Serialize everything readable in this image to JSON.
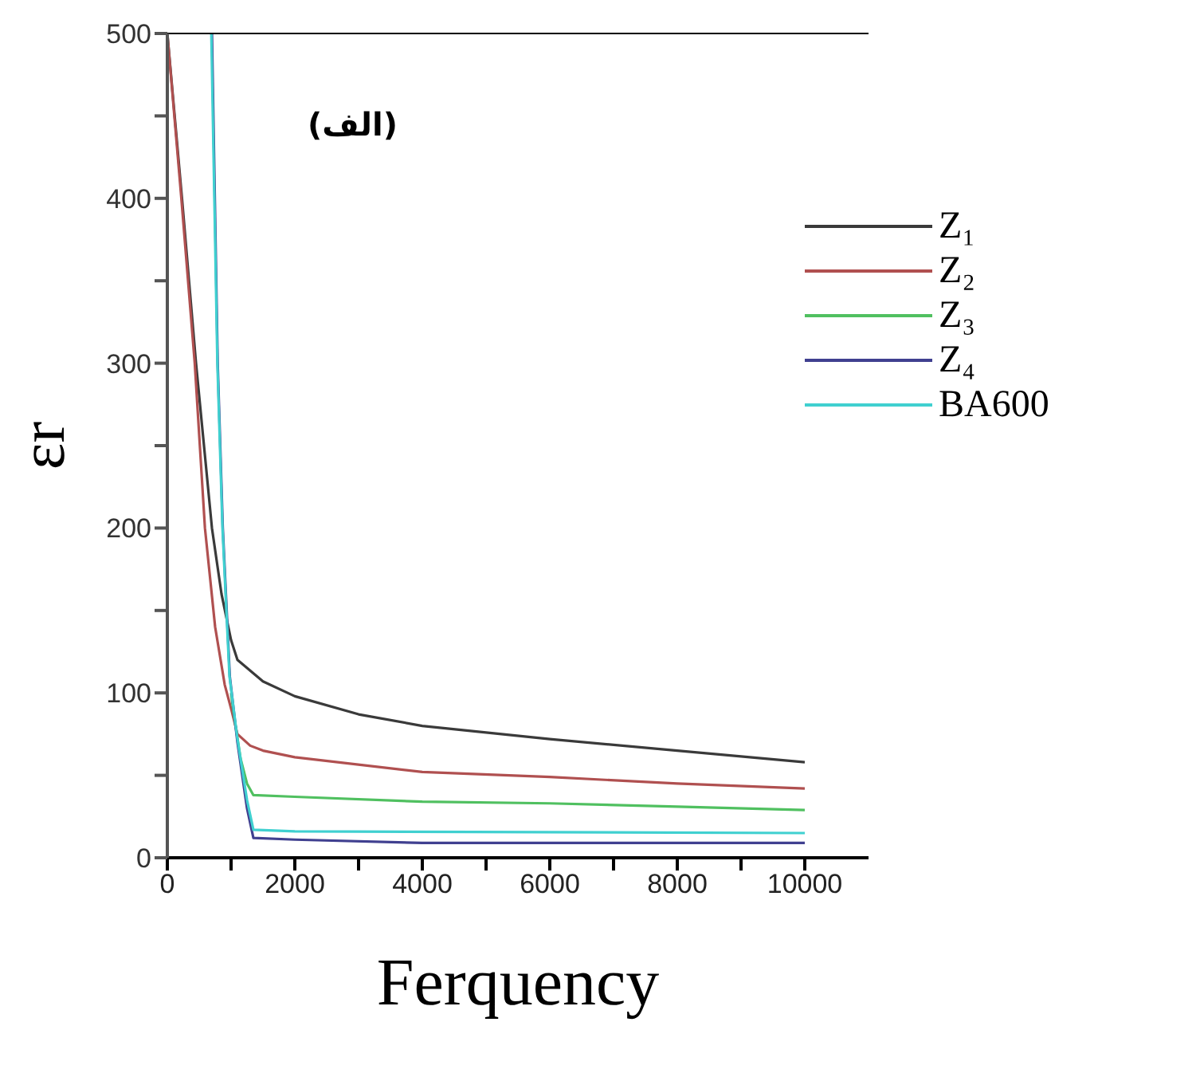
{
  "chart_data": {
    "type": "line",
    "xlabel": "Ferquency",
    "ylabel": "εr",
    "annotations": [
      "(الف)"
    ],
    "legend": "top right",
    "grid": false,
    "marker": "none",
    "line_style": "solid",
    "xlim": [
      0,
      11000
    ],
    "ylim": [
      0,
      500
    ],
    "xticks": [
      0,
      {
        "value": 1000,
        "label": null
      },
      2000,
      {
        "value": 3000,
        "label": null
      },
      4000,
      {
        "value": 5000,
        "label": null
      },
      6000,
      {
        "value": 7000,
        "label": null
      },
      8000,
      {
        "value": 9000,
        "label": null
      },
      10000
    ],
    "yticks": [
      0,
      {
        "value": 50,
        "label": null
      },
      100,
      {
        "value": 150,
        "label": null
      },
      200,
      {
        "value": 250,
        "label": null
      },
      300,
      {
        "value": 350,
        "label": null
      },
      400,
      {
        "value": 450,
        "label": null
      },
      500
    ],
    "series": [
      {
        "name": "Z₁",
        "color": "#3a3a3a",
        "x": [
          0,
          230,
          450,
          700,
          850,
          1000,
          1100,
          1500,
          2000,
          3000,
          4000,
          6000,
          8000,
          10000
        ],
        "values": [
          500,
          400,
          300,
          200,
          160,
          132,
          120,
          107,
          98,
          87,
          80,
          72,
          65,
          58
        ]
      },
      {
        "name": "Z₂",
        "color": "#b05050",
        "x": [
          0,
          220,
          430,
          590,
          750,
          900,
          1010,
          1100,
          1300,
          1500,
          2000,
          4000,
          6000,
          8000,
          10000
        ],
        "values": [
          500,
          400,
          300,
          200,
          140,
          105,
          89,
          75,
          68,
          65,
          61,
          52,
          49,
          45,
          42
        ]
      },
      {
        "name": "Z₃",
        "color": "#50c060",
        "x": [
          1000,
          1050,
          1150,
          1250,
          1350,
          2000,
          4000,
          6000,
          8000,
          10000
        ],
        "values": [
          100,
          85,
          60,
          45,
          38,
          37,
          34,
          33,
          31,
          29
        ]
      },
      {
        "name": "Z₄",
        "color": "#404090",
        "x": [
          700,
          790,
          870,
          980,
          1100,
          1250,
          1350,
          2000,
          4000,
          10000
        ],
        "values": [
          500,
          300,
          200,
          110,
          70,
          30,
          12,
          11,
          9,
          9
        ]
      },
      {
        "name": "BA600",
        "color": "#40d0d0",
        "x": [
          690,
          785,
          865,
          975,
          1100,
          1250,
          1350,
          2000,
          10000
        ],
        "values": [
          500,
          300,
          200,
          110,
          72,
          35,
          17,
          16,
          15
        ]
      }
    ]
  }
}
